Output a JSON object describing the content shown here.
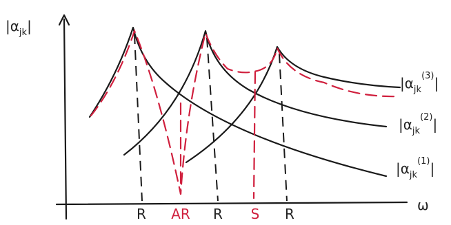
{
  "y_label": {
    "base": "|α",
    "sub": "jk",
    "end": "|"
  },
  "x_label": "ω",
  "markers": [
    "R",
    "AR",
    "R",
    "S",
    "R"
  ],
  "curve_labels": [
    {
      "base": "|α",
      "sub": "jk",
      "sup": "(3)",
      "end": "|"
    },
    {
      "base": "|α",
      "sub": "jk",
      "sup": "(2)",
      "end": "|"
    },
    {
      "base": "|α",
      "sub": "jk",
      "sup": "(1)",
      "end": "|"
    }
  ]
}
